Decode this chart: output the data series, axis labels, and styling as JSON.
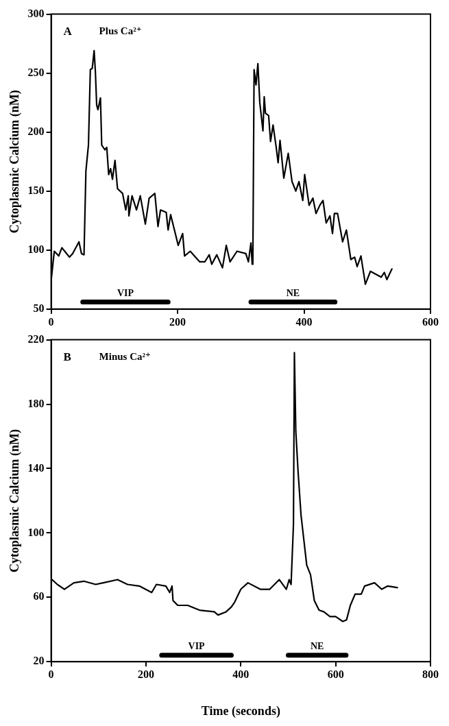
{
  "chart_data": [
    {
      "type": "line",
      "ylabel": "Cytoplasmic Calcium (nM)",
      "annotations": [
        "A",
        "Plus Ca²⁺"
      ],
      "marker": "none",
      "line_style": "solid",
      "x": [
        0,
        5,
        12,
        17,
        23,
        29,
        34,
        44,
        48,
        52,
        55,
        59,
        62,
        65,
        68,
        70,
        72,
        74,
        78,
        80,
        85,
        88,
        91,
        94,
        97,
        101,
        105,
        113,
        118,
        122,
        123,
        128,
        135,
        141,
        149,
        155,
        164,
        169,
        173,
        182,
        185,
        189,
        201,
        208,
        211,
        220,
        235,
        243,
        250,
        254,
        262,
        271,
        277,
        283,
        294,
        308,
        312,
        316,
        318,
        319,
        321,
        324,
        327,
        330,
        335,
        337,
        339,
        344,
        347,
        351,
        356,
        359,
        362,
        368,
        375,
        381,
        387,
        392,
        398,
        401,
        408,
        414,
        419,
        425,
        430,
        435,
        441,
        445,
        448,
        453,
        461,
        467,
        474,
        480,
        484,
        490,
        497,
        505,
        522,
        527,
        531,
        539
      ],
      "series": [
        {
          "name": "VIP",
          "color": "#000000",
          "x": [
            50,
            185
          ],
          "values": [
            56,
            56
          ]
        },
        {
          "name": "NE",
          "color": "#000000",
          "x": [
            316,
            449
          ],
          "values": [
            56,
            56
          ]
        },
        {
          "color": "#000000",
          "values": [
            74,
            99,
            95,
            102,
            98,
            94,
            97,
            107,
            97,
            96,
            167,
            189,
            253,
            254,
            269,
            251,
            223,
            219,
            229,
            189,
            185,
            187,
            164,
            169,
            160,
            176,
            152,
            148,
            134,
            146,
            129,
            146,
            134,
            146,
            122,
            144,
            148,
            120,
            134,
            132,
            117,
            130,
            104,
            114,
            95,
            99,
            90,
            90,
            96,
            88,
            96,
            85,
            104,
            90,
            99,
            97,
            90,
            106,
            88,
            88,
            253,
            240,
            258,
            225,
            201,
            230,
            216,
            214,
            192,
            206,
            187,
            174,
            193,
            161,
            182,
            158,
            150,
            158,
            142,
            164,
            138,
            144,
            131,
            138,
            142,
            123,
            129,
            114,
            131,
            131,
            107,
            117,
            92,
            94,
            86,
            95,
            71,
            82,
            77,
            81,
            75,
            84
          ]
        }
      ],
      "xlim": [
        0,
        600
      ],
      "xticks": [
        0,
        200,
        400,
        600
      ],
      "ylim": [
        50,
        300
      ],
      "yticks": [
        50,
        100,
        150,
        200,
        250,
        300
      ]
    },
    {
      "type": "line",
      "ylabel": "Cytoplasmic Calcium (nM)",
      "xlabel": "Time (seconds)",
      "annotations": [
        "B",
        "Minus Ca²⁺"
      ],
      "marker": "none",
      "line_style": "solid",
      "x": [
        0,
        13,
        28,
        48,
        69,
        94,
        110,
        140,
        161,
        186,
        212,
        222,
        242,
        250,
        255,
        257,
        267,
        288,
        313,
        344,
        352,
        369,
        380,
        387,
        400,
        415,
        441,
        461,
        481,
        496,
        502,
        506,
        511,
        513,
        516,
        521,
        527,
        539,
        547,
        555,
        565,
        575,
        588,
        600,
        615,
        623,
        631,
        641,
        654,
        661,
        682,
        697,
        710,
        730
      ],
      "series": [
        {
          "name": "VIP",
          "color": "#000000",
          "x": [
            233,
            380
          ],
          "values": [
            24,
            24
          ]
        },
        {
          "name": "NE",
          "color": "#000000",
          "x": [
            500,
            622
          ],
          "values": [
            24,
            24
          ]
        },
        {
          "color": "#000000",
          "values": [
            71.5,
            68,
            65,
            69,
            70,
            68,
            69,
            71,
            68,
            67,
            63,
            68,
            67,
            63,
            67,
            58,
            55,
            55,
            52,
            51,
            49,
            51,
            54,
            57,
            65,
            69,
            65,
            65,
            71,
            65,
            71,
            68,
            105,
            212,
            163,
            137,
            111,
            80,
            74,
            58,
            52,
            51,
            48,
            48,
            45,
            46,
            55,
            62,
            62,
            67,
            69,
            65,
            67,
            66
          ]
        }
      ],
      "xlim": [
        0,
        800
      ],
      "xticks": [
        0,
        200,
        400,
        600,
        800
      ],
      "ylim": [
        20,
        220
      ],
      "yticks": [
        20,
        60,
        100,
        140,
        180,
        220
      ]
    }
  ]
}
